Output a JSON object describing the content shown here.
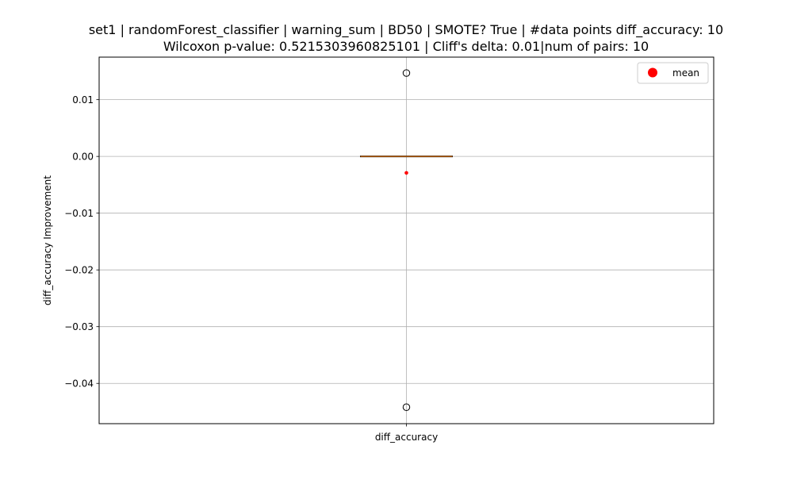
{
  "chart_data": {
    "type": "box",
    "title_lines": [
      "set1 | randomForest_classifier | warning_sum | BD50 | SMOTE? True | #data points diff_accuracy: 10",
      "Wilcoxon p-value: 0.5215303960825101 | Cliff's delta: 0.01|num of pairs: 10"
    ],
    "xlabel": "",
    "ylabel": "diff_accuracy Improvement",
    "categories": [
      "diff_accuracy"
    ],
    "ylim": [
      -0.0471,
      0.0175
    ],
    "yticks": [
      0.01,
      0.0,
      -0.01,
      -0.02,
      -0.03,
      -0.04
    ],
    "ytick_labels": [
      "0.01",
      "0.00",
      "−0.01",
      "−0.02",
      "−0.03",
      "−0.04"
    ],
    "grid": true,
    "box": {
      "q1": 0.0,
      "median": 0.0,
      "q3": 0.0,
      "whisker_low": 0.0,
      "whisker_high": 0.0,
      "mean": -0.0029,
      "outliers": [
        0.0147,
        -0.0442
      ]
    },
    "legend": {
      "position": "top-right",
      "entries": [
        {
          "label": "mean",
          "color": "#ff0000"
        }
      ]
    },
    "colors": {
      "median": "#ff7f0e",
      "mean": "#ff0000",
      "grid": "#b0b0b0",
      "box": "#000000"
    }
  }
}
